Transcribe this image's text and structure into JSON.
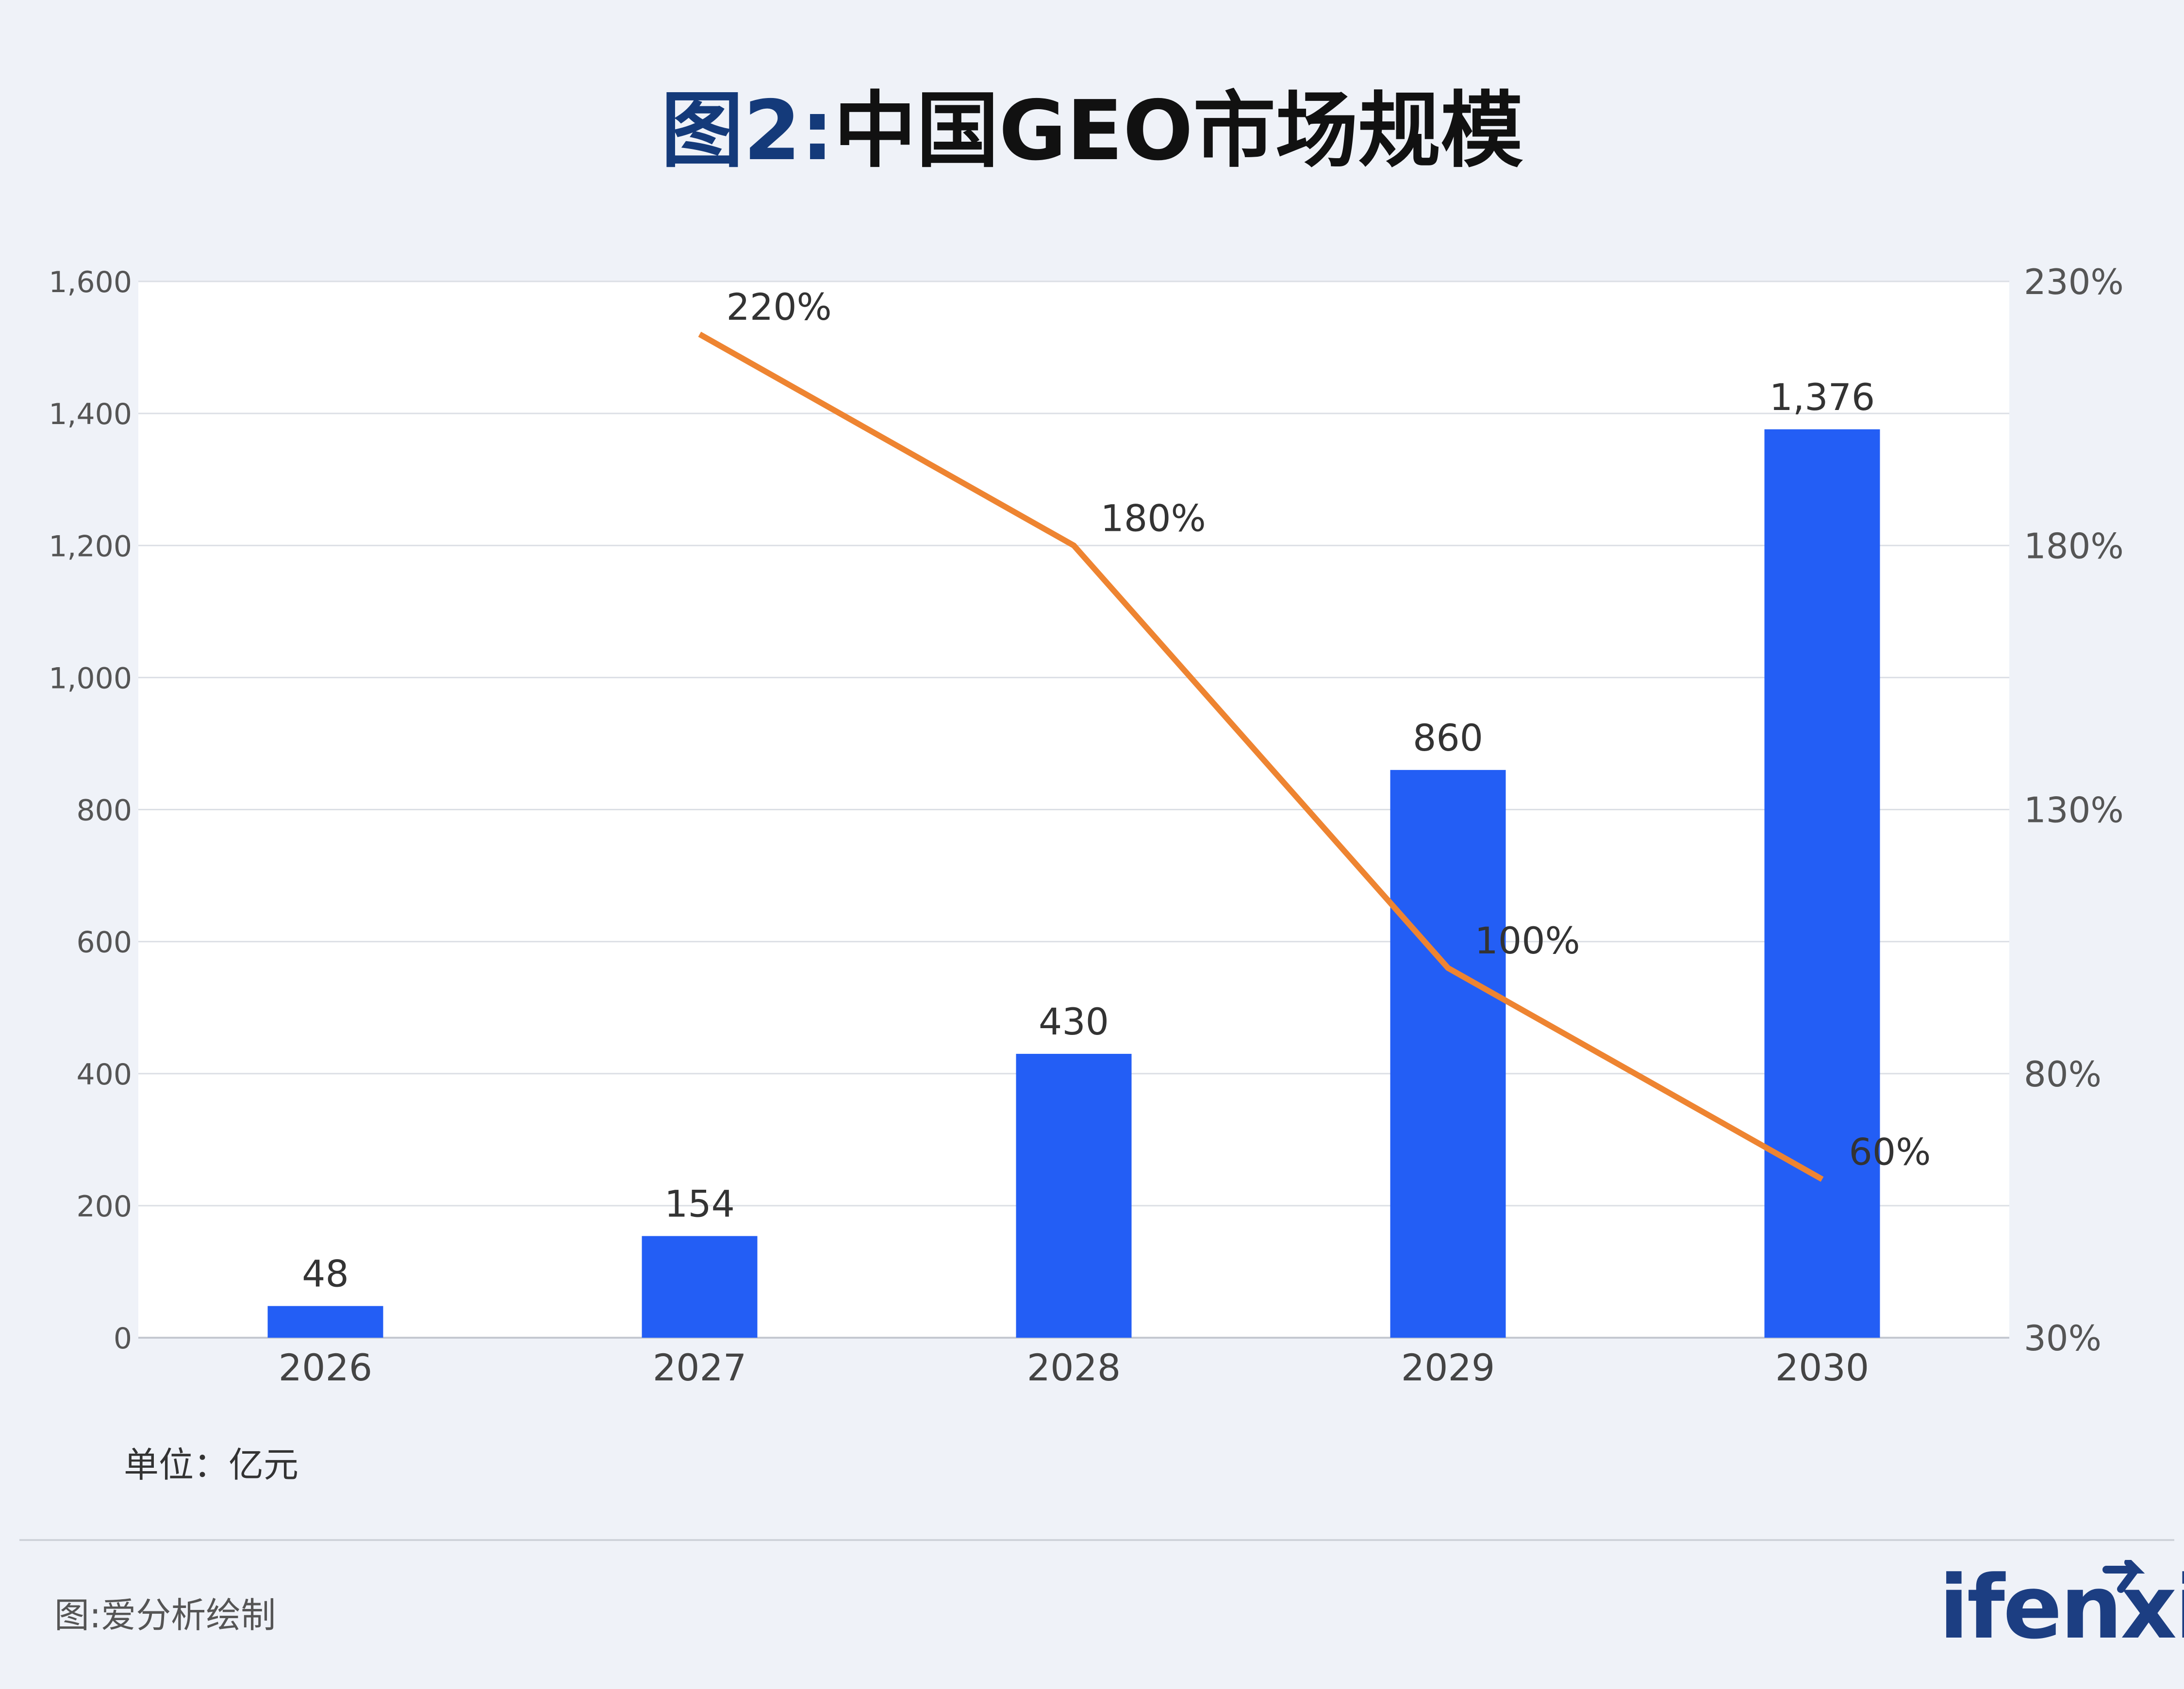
{
  "title": {
    "prefix": "图2:",
    "main": "中国GEO市场规模"
  },
  "unit_label": "单位：亿元",
  "source_label": "图:爱分析绘制",
  "logo_text": "ifenxi",
  "colors": {
    "bar": "#235ef5",
    "line": "#ee8431",
    "title_prefix": "#143a7a",
    "logo": "#1c3e82"
  },
  "chart_data": {
    "type": "bar",
    "categories": [
      "2026",
      "2027",
      "2028",
      "2029",
      "2030"
    ],
    "series": [
      {
        "type": "bar",
        "values": [
          48,
          154,
          430,
          860,
          1376
        ],
        "labels": [
          "48",
          "154",
          "430",
          "860",
          "1,376"
        ]
      },
      {
        "type": "line",
        "axis": "right",
        "values": [
          null,
          220,
          180,
          100,
          60
        ],
        "labels": [
          "",
          "220%",
          "180%",
          "100%",
          "60%"
        ]
      }
    ],
    "ylim": [
      0,
      1600
    ],
    "yticks": [
      0,
      200,
      400,
      600,
      800,
      1000,
      1200,
      1400,
      1600
    ],
    "ytick_labels": [
      "0",
      "200",
      "400",
      "600",
      "800",
      "1,000",
      "1,200",
      "1,400",
      "1,600"
    ],
    "y2lim": [
      30,
      230
    ],
    "y2ticks": [
      30,
      80,
      130,
      180,
      230
    ],
    "y2tick_labels": [
      "30%",
      "80%",
      "130%",
      "180%",
      "230%"
    ],
    "grid": true
  }
}
